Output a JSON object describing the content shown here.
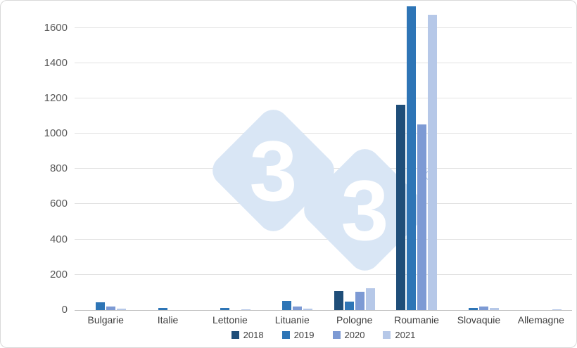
{
  "chart_data": {
    "type": "bar",
    "title": "",
    "xlabel": "",
    "ylabel": "",
    "categories": [
      "Bulgarie",
      "Italie",
      "Lettonie",
      "Lituanie",
      "Pologne",
      "Roumanie",
      "Slovaquie",
      "Allemagne"
    ],
    "series": [
      {
        "name": "2018",
        "color": "#1F4E79",
        "values": [
          0,
          0,
          0,
          0,
          109,
          1163,
          0,
          0
        ]
      },
      {
        "name": "2019",
        "color": "#2E75B6",
        "values": [
          44,
          12,
          12,
          51,
          48,
          1724,
          12,
          0
        ]
      },
      {
        "name": "2020",
        "color": "#7D9AD4",
        "values": [
          21,
          0,
          0,
          19,
          103,
          1053,
          20,
          0
        ]
      },
      {
        "name": "2021",
        "color": "#B6C8E8",
        "values": [
          7,
          0,
          4,
          6,
          124,
          1676,
          10,
          4
        ]
      }
    ],
    "yticks": [
      0,
      200,
      400,
      600,
      800,
      1000,
      1200,
      1400,
      1600
    ],
    "ylim": [
      0,
      1730
    ],
    "grid": true,
    "legend_position": "bottom"
  },
  "watermark": {
    "glyph": "3",
    "registered_symbol": "®",
    "diamond_color": "#D9E6F5",
    "symbol_color": "#BCD0EB"
  },
  "style": {
    "gridline_color": "#e2e2e2",
    "axis_line_color": "#bfbfbf",
    "ytick_color": "#595959",
    "xtick_color": "#3f3f3f"
  }
}
